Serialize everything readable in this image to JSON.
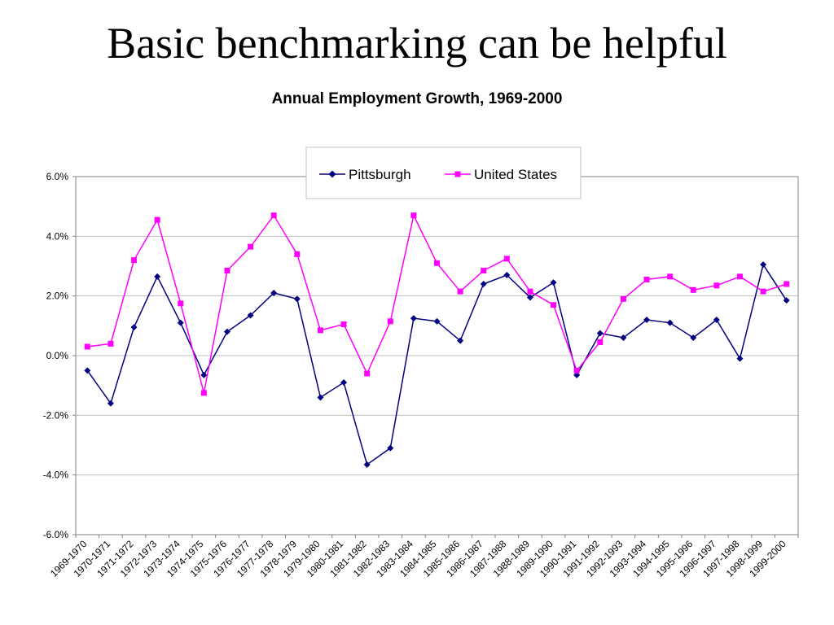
{
  "slide": {
    "title": "Basic benchmarking can be helpful"
  },
  "chart_data": {
    "type": "line",
    "title": "Annual Employment Growth, 1969-2000",
    "xlabel": "",
    "ylabel": "",
    "ylim": [
      -6.0,
      6.0
    ],
    "yticks": [
      6.0,
      4.0,
      2.0,
      0.0,
      -2.0,
      -4.0,
      -6.0
    ],
    "ytick_labels": [
      "6.0%",
      "4.0%",
      "2.0%",
      "0.0%",
      "-2.0%",
      "-4.0%",
      "-6.0%"
    ],
    "grid": true,
    "legend_position": "top-right",
    "categories": [
      "1969-1970",
      "1970-1971",
      "1971-1972",
      "1972-1973",
      "1973-1974",
      "1974-1975",
      "1975-1976",
      "1976-1977",
      "1977-1978",
      "1978-1979",
      "1979-1980",
      "1980-1981",
      "1981-1982",
      "1982-1983",
      "1983-1984",
      "1984-1985",
      "1985-1986",
      "1986-1987",
      "1987-1988",
      "1988-1989",
      "1989-1990",
      "1990-1991",
      "1991-1992",
      "1992-1993",
      "1993-1994",
      "1994-1995",
      "1995-1996",
      "1996-1997",
      "1997-1998",
      "1998-1999",
      "1999-2000"
    ],
    "series": [
      {
        "name": "Pittsburgh",
        "color": "#000080",
        "marker": "diamond",
        "values": [
          -0.5,
          -1.6,
          0.95,
          2.65,
          1.1,
          -0.65,
          0.8,
          1.35,
          2.1,
          1.9,
          -1.4,
          -0.9,
          -3.65,
          -3.1,
          1.25,
          1.15,
          0.5,
          2.4,
          2.7,
          1.95,
          2.45,
          -0.65,
          0.75,
          0.6,
          1.2,
          1.1,
          0.6,
          1.2,
          -0.1,
          3.05,
          1.85
        ]
      },
      {
        "name": "United States",
        "color": "#ff00ff",
        "marker": "square",
        "values": [
          0.3,
          0.4,
          3.2,
          4.55,
          1.75,
          -1.25,
          2.85,
          3.65,
          4.7,
          3.4,
          0.85,
          1.05,
          -0.6,
          1.15,
          4.7,
          3.1,
          2.15,
          2.85,
          3.25,
          2.15,
          1.7,
          -0.5,
          0.45,
          1.9,
          2.55,
          2.65,
          2.2,
          2.35,
          2.65,
          2.15,
          2.4
        ]
      }
    ]
  }
}
